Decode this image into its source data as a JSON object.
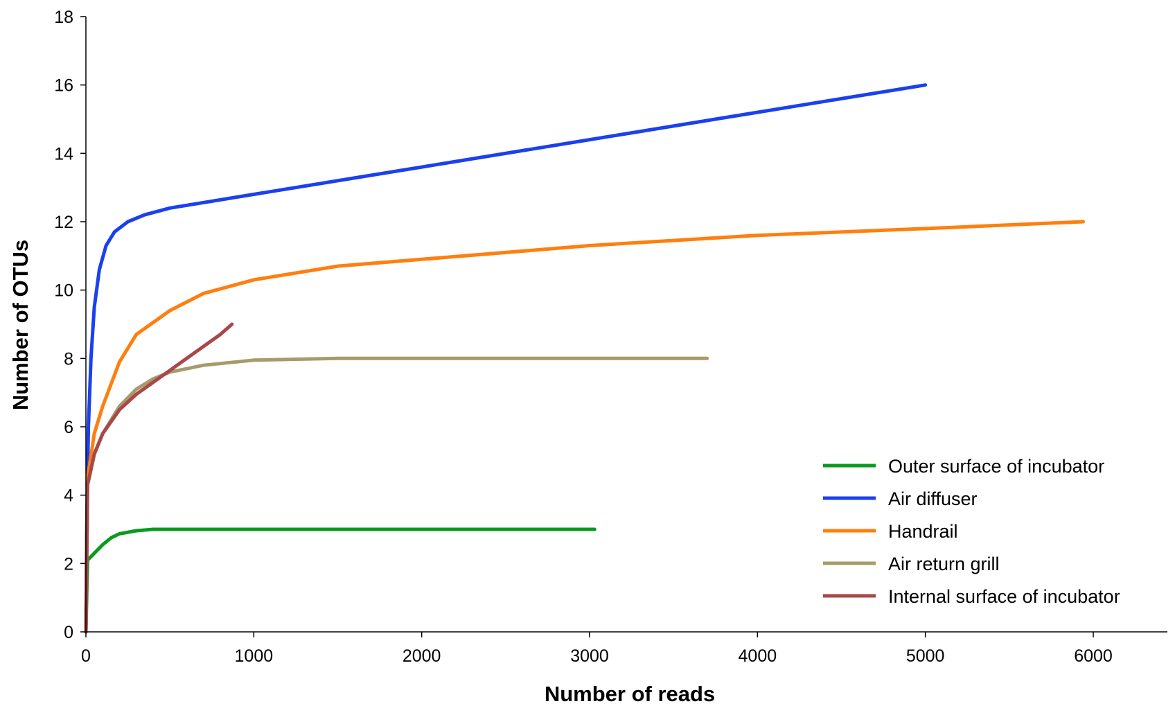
{
  "chart_data": {
    "type": "line",
    "title": "",
    "xlabel": "Number of reads",
    "ylabel": "Number of OTUs",
    "xlim": [
      0,
      6500
    ],
    "ylim": [
      0,
      18
    ],
    "x_ticks": [
      "0",
      "1000",
      "2000",
      "3000",
      "4000",
      "5000",
      "6000"
    ],
    "y_ticks": [
      "0",
      "2",
      "4",
      "6",
      "8",
      "10",
      "12",
      "14",
      "16",
      "18"
    ],
    "grid": false,
    "legend_position": "bottom-right",
    "series": [
      {
        "name": "Outer surface of incubator",
        "color": "#0A9B1E",
        "points": [
          [
            0,
            0
          ],
          [
            10,
            2.1
          ],
          [
            50,
            2.3
          ],
          [
            100,
            2.55
          ],
          [
            150,
            2.75
          ],
          [
            200,
            2.87
          ],
          [
            300,
            2.96
          ],
          [
            400,
            3.0
          ],
          [
            1000,
            3.0
          ],
          [
            2000,
            3.0
          ],
          [
            3030,
            3.0
          ]
        ]
      },
      {
        "name": "Air diffuser",
        "color": "#1A40F0",
        "points": [
          [
            0,
            0
          ],
          [
            5,
            3
          ],
          [
            15,
            6
          ],
          [
            30,
            8
          ],
          [
            50,
            9.5
          ],
          [
            80,
            10.6
          ],
          [
            120,
            11.3
          ],
          [
            170,
            11.7
          ],
          [
            250,
            12.0
          ],
          [
            350,
            12.2
          ],
          [
            500,
            12.4
          ],
          [
            1000,
            12.8
          ],
          [
            2000,
            13.6
          ],
          [
            3000,
            14.4
          ],
          [
            4000,
            15.2
          ],
          [
            5000,
            16.0
          ]
        ]
      },
      {
        "name": "Handrail",
        "color": "#FF7F0E",
        "points": [
          [
            0,
            0
          ],
          [
            10,
            4.5
          ],
          [
            50,
            5.8
          ],
          [
            100,
            6.6
          ],
          [
            200,
            7.9
          ],
          [
            300,
            8.7
          ],
          [
            500,
            9.4
          ],
          [
            700,
            9.9
          ],
          [
            1000,
            10.3
          ],
          [
            1500,
            10.7
          ],
          [
            2000,
            10.9
          ],
          [
            3000,
            11.3
          ],
          [
            4000,
            11.6
          ],
          [
            5000,
            11.8
          ],
          [
            5940,
            12.0
          ]
        ]
      },
      {
        "name": "Air return grill",
        "color": "#A89A6A",
        "points": [
          [
            0,
            0
          ],
          [
            10,
            4.3
          ],
          [
            50,
            5.2
          ],
          [
            100,
            5.8
          ],
          [
            200,
            6.6
          ],
          [
            300,
            7.1
          ],
          [
            400,
            7.4
          ],
          [
            500,
            7.6
          ],
          [
            700,
            7.8
          ],
          [
            1000,
            7.95
          ],
          [
            1500,
            8.0
          ],
          [
            2000,
            8.0
          ],
          [
            3000,
            8.0
          ],
          [
            3700,
            8.0
          ]
        ]
      },
      {
        "name": "Internal surface of incubator",
        "color": "#A84848",
        "points": [
          [
            0,
            0
          ],
          [
            10,
            4.3
          ],
          [
            50,
            5.2
          ],
          [
            100,
            5.8
          ],
          [
            200,
            6.5
          ],
          [
            300,
            6.95
          ],
          [
            400,
            7.3
          ],
          [
            500,
            7.65
          ],
          [
            600,
            8.0
          ],
          [
            700,
            8.35
          ],
          [
            800,
            8.7
          ],
          [
            870,
            9.0
          ]
        ]
      }
    ]
  }
}
